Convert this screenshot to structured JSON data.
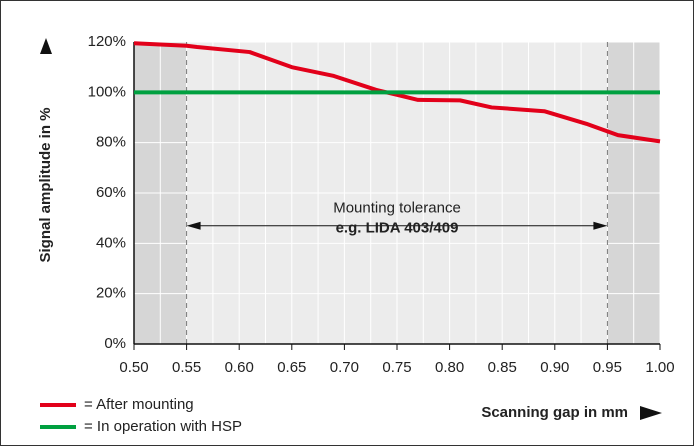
{
  "chart_data": {
    "type": "line",
    "ylabel": "Signal amplitude in %",
    "xlabel": "Scanning gap in mm",
    "xlim": [
      0.5,
      1.0
    ],
    "ylim": [
      0,
      120
    ],
    "xticks": [
      {
        "value": 0.5,
        "label": "0.50"
      },
      0.55,
      {
        "value": 0.6,
        "label": "0.60"
      },
      0.65,
      {
        "value": 0.7,
        "label": "0.70"
      },
      0.75,
      {
        "value": 0.8,
        "label": "0.80"
      },
      0.85,
      {
        "value": 0.9,
        "label": "0.90"
      },
      0.95,
      {
        "value": 1.0,
        "label": "1.00"
      }
    ],
    "xminorticks": [
      0.525,
      0.575,
      0.625,
      0.675,
      0.725,
      0.775,
      0.825,
      0.875,
      0.925,
      0.975
    ],
    "yticks": [
      {
        "value": 0,
        "label": "0%"
      },
      {
        "value": 20,
        "label": "20%"
      },
      {
        "value": 40,
        "label": "40%"
      },
      {
        "value": 60,
        "label": "60%"
      },
      {
        "value": 80,
        "label": "80%"
      },
      {
        "value": 100,
        "label": "100%"
      },
      {
        "value": 120,
        "label": "120%"
      }
    ],
    "grid": true,
    "shaded_regions": [
      [
        0.5,
        0.55
      ],
      [
        0.95,
        1.0
      ]
    ],
    "tolerance": {
      "range": [
        0.55,
        0.95
      ],
      "y": 47,
      "label": "Mounting tolerance",
      "sublabel": "e.g. LIDA 403/409"
    },
    "series": [
      {
        "name": "= After mounting",
        "color": "#e2001a",
        "x": [
          0.5,
          0.55,
          0.56,
          0.61,
          0.65,
          0.69,
          0.73,
          0.75,
          0.77,
          0.81,
          0.84,
          0.89,
          0.93,
          0.96,
          1.0
        ],
        "values": [
          119.5,
          118.5,
          118,
          116,
          110,
          106.5,
          101,
          99,
          97,
          96.8,
          94,
          92.5,
          87.5,
          83,
          80.5
        ]
      },
      {
        "name": "= In operation with HSP",
        "color": "#00a040",
        "x": [
          0.5,
          1.0
        ],
        "values": [
          100,
          100
        ]
      }
    ]
  }
}
